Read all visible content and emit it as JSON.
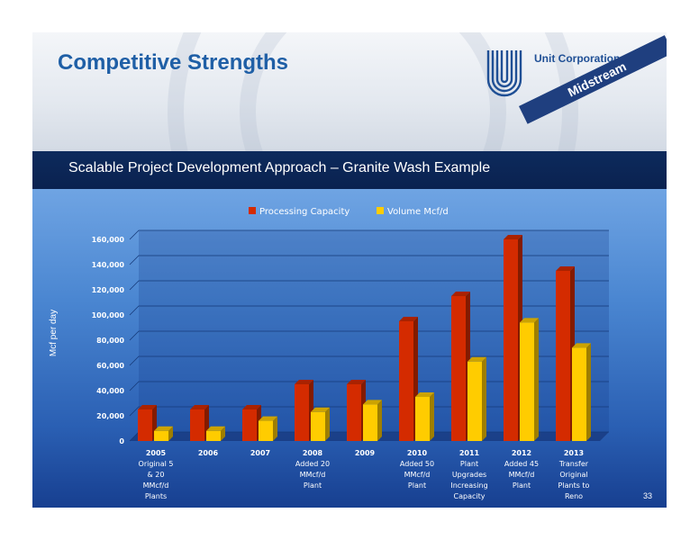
{
  "header": {
    "title": "Competitive Strengths",
    "logo_text": "Unit Corporation",
    "ribbon_text": "Midstream"
  },
  "subtitle": "Scalable Project Development Approach – Granite Wash Example",
  "page_number": "33",
  "colors": {
    "processing": "#d42b00",
    "volume": "#ffcc00",
    "title": "#1f5fa6",
    "subtitle_bar": "#0d2a5c"
  },
  "chart_data": {
    "type": "bar",
    "title": "",
    "ylabel": "Mcf per day",
    "xlabel": "",
    "ylim": [
      0,
      160000
    ],
    "yticks": [
      0,
      20000,
      40000,
      60000,
      80000,
      100000,
      120000,
      140000,
      160000
    ],
    "ytick_labels": [
      "0",
      "20,000",
      "40,000",
      "60,000",
      "80,000",
      "100,000",
      "120,000",
      "140,000",
      "160,000"
    ],
    "legend_position": "top-center",
    "grid": true,
    "categories": [
      [
        "2005",
        "Original 5",
        "& 20",
        "MMcf/d",
        "Plants"
      ],
      [
        "2006"
      ],
      [
        "2007"
      ],
      [
        "2008",
        "Added 20",
        "MMcf/d",
        "Plant"
      ],
      [
        "2009"
      ],
      [
        "2010",
        "Added 50",
        "MMcf/d",
        "Plant"
      ],
      [
        "2011",
        "Plant",
        "Upgrades",
        "Increasing",
        "Capacity"
      ],
      [
        "2012",
        "Added 45",
        "MMcf/d",
        "Plant"
      ],
      [
        "2013",
        "Transfer",
        "Original",
        "Plants to",
        "Reno"
      ]
    ],
    "series": [
      {
        "name": "Processing Capacity",
        "values": [
          25000,
          25000,
          25000,
          45000,
          45000,
          95000,
          115000,
          160000,
          135000
        ]
      },
      {
        "name": "Volume Mcf/d",
        "values": [
          8000,
          8000,
          16000,
          23000,
          29000,
          35000,
          63000,
          94000,
          74000
        ]
      }
    ]
  }
}
